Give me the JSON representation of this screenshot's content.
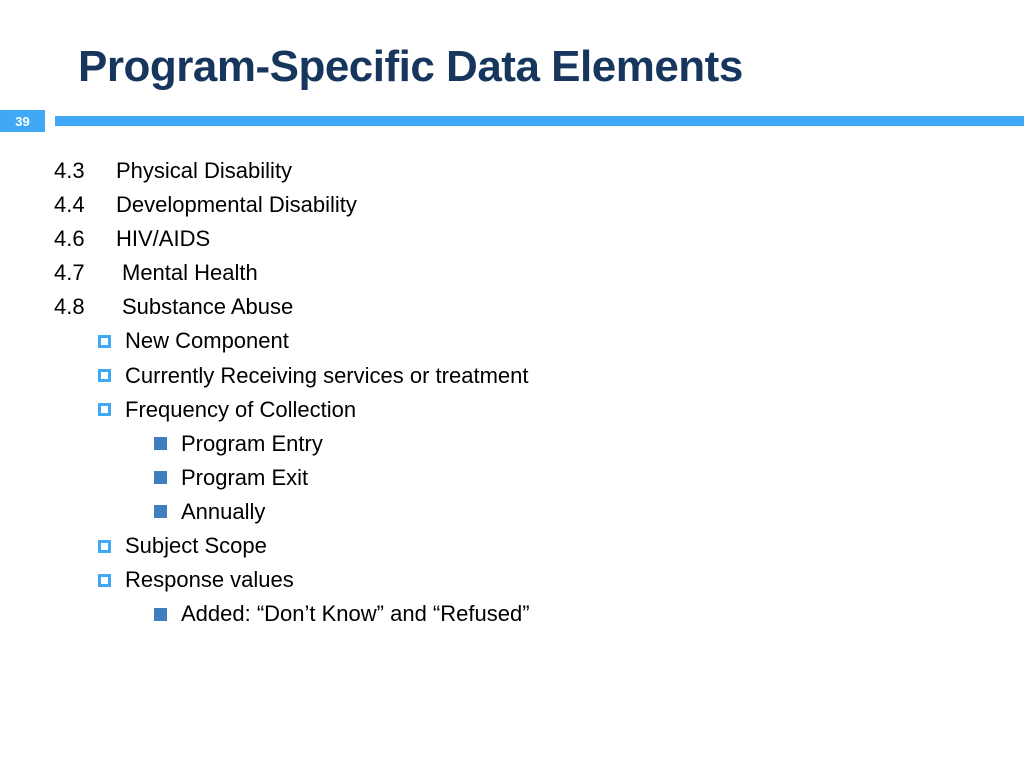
{
  "title": "Program-Specific Data Elements",
  "title_color": "#17365d",
  "page_number": "39",
  "accent_color": "#3fa9f5",
  "solid_bullet_color": "#3f7fbf",
  "background_color": "#ffffff",
  "text_color": "#000000",
  "title_fontsize": 44,
  "body_fontsize": 22,
  "items": [
    {
      "num": "4.3",
      "label": "Physical Disability"
    },
    {
      "num": "4.4",
      "label": "Developmental Disability"
    },
    {
      "num": "4.6",
      "label": "HIV/AIDS"
    },
    {
      "num": "4.7",
      "label": "Mental Health"
    },
    {
      "num": "4.8",
      "label": "Substance Abuse"
    }
  ],
  "sub1": [
    "New Component",
    "Currently Receiving services or treatment",
    "Frequency of Collection"
  ],
  "sub2a": [
    "Program Entry",
    "Program Exit",
    "Annually"
  ],
  "sub1b": [
    "Subject Scope",
    "Response values"
  ],
  "sub2b": [
    "Added: “Don’t Know” and “Refused”"
  ]
}
